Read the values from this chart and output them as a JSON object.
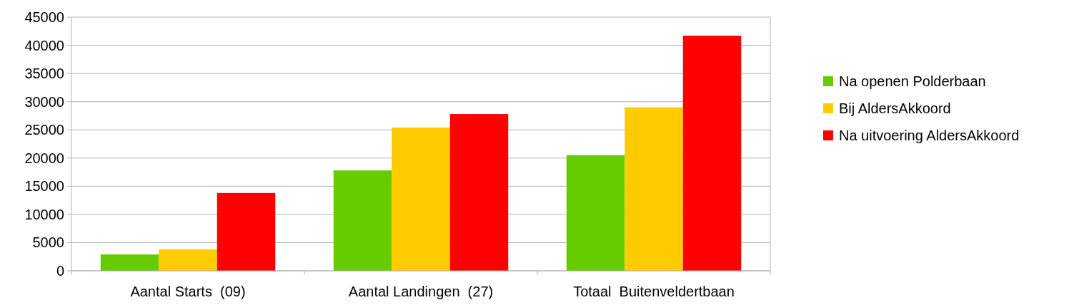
{
  "chart_data": {
    "type": "bar",
    "categories": [
      "Aantal Starts  (09)",
      "Aantal Landingen  (27)",
      "Totaal  Buitenveldertbaan"
    ],
    "series": [
      {
        "name": "Na openen Polderbaan",
        "color": "#66cc00",
        "values": [
          2900,
          17800,
          20500
        ]
      },
      {
        "name": "Bij AldersAkkoord",
        "color": "#ffcc00",
        "values": [
          3800,
          25400,
          29000
        ]
      },
      {
        "name": "Na uitvoering AldersAkkoord",
        "color": "#ff0000",
        "values": [
          13800,
          27800,
          41700
        ]
      }
    ],
    "ylim": [
      0,
      45000
    ],
    "yticks": [
      0,
      5000,
      10000,
      15000,
      20000,
      25000,
      30000,
      35000,
      40000,
      45000
    ],
    "grid": "y",
    "legend": "right"
  }
}
